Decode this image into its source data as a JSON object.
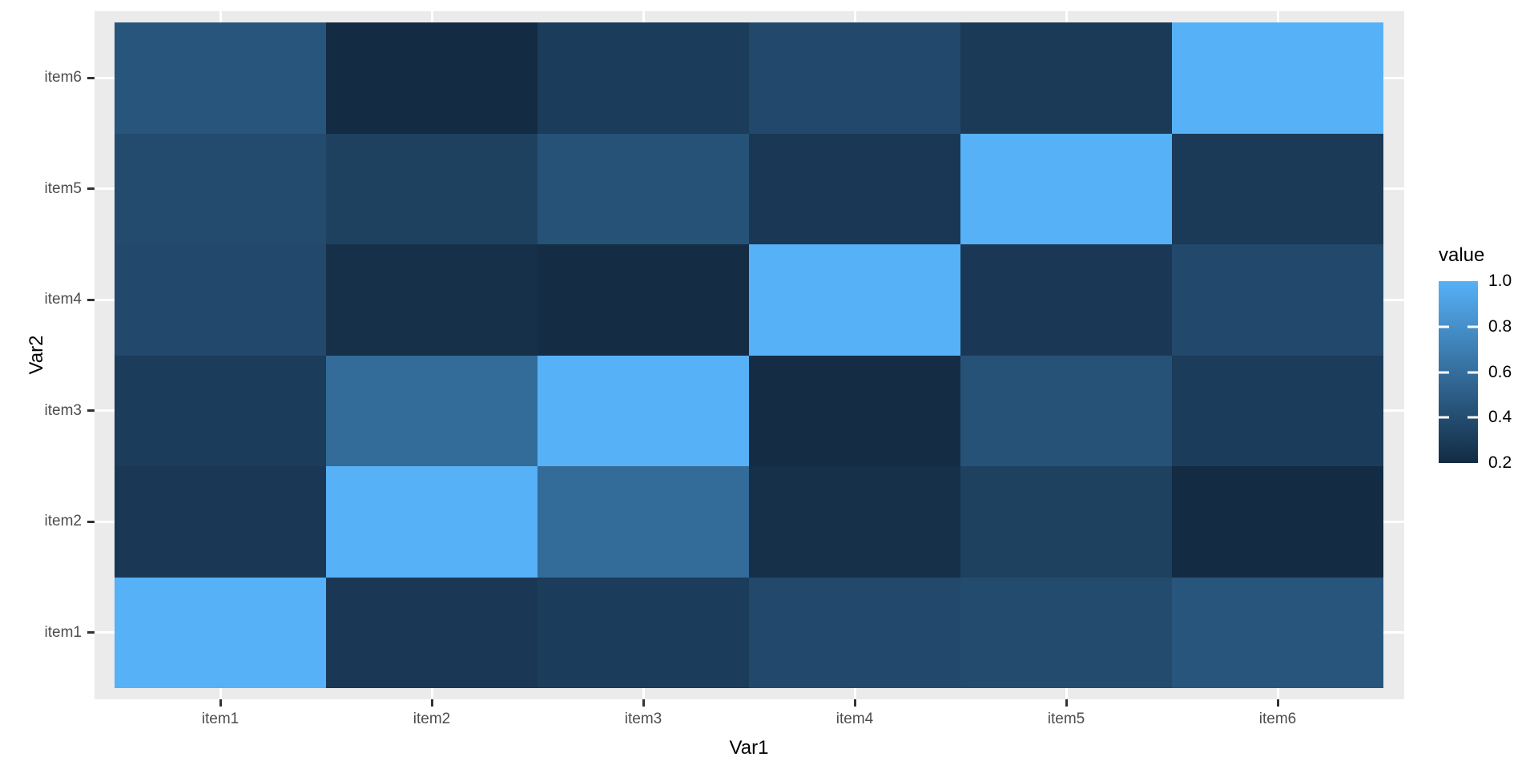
{
  "figure": {
    "background": "#ffffff",
    "panel_background": "#ebebeb",
    "grid_color": "#ffffff",
    "tick_mark_color": "#333333",
    "axis_text_color": "#4d4d4d",
    "title_text_color": "#000000"
  },
  "chart_data": {
    "type": "heatmap",
    "title": "",
    "xlabel": "Var1",
    "ylabel": "Var2",
    "x_categories": [
      "item1",
      "item2",
      "item3",
      "item4",
      "item5",
      "item6"
    ],
    "y_categories": [
      "item1",
      "item2",
      "item3",
      "item4",
      "item5",
      "item6"
    ],
    "y_display_top_to_bottom": [
      "item6",
      "item5",
      "item4",
      "item3",
      "item2",
      "item1"
    ],
    "note_values": "rows = Var2 (item1..item6), columns = Var1 (item1..item6)",
    "values": [
      [
        1.0,
        0.28,
        0.3,
        0.38,
        0.39,
        0.45
      ],
      [
        0.28,
        1.0,
        0.58,
        0.23,
        0.33,
        0.2
      ],
      [
        0.3,
        0.58,
        1.0,
        0.21,
        0.43,
        0.3
      ],
      [
        0.38,
        0.23,
        0.21,
        1.0,
        0.28,
        0.38
      ],
      [
        0.39,
        0.33,
        0.43,
        0.28,
        1.0,
        0.29
      ],
      [
        0.45,
        0.2,
        0.3,
        0.38,
        0.29,
        1.0
      ]
    ],
    "color_scale": {
      "low_color": "#132B43",
      "high_color": "#56B1F7",
      "domain": [
        0.2,
        1.0
      ]
    },
    "legend": {
      "title": "value",
      "position": "right",
      "tick_labels": [
        "1.0",
        "0.8",
        "0.6",
        "0.4",
        "0.2"
      ],
      "tick_values": [
        1.0,
        0.8,
        0.6,
        0.4,
        0.2
      ]
    },
    "grid": true,
    "axis_ranges": {
      "x": [
        0.4,
        6.6
      ],
      "y": [
        0.4,
        6.6
      ]
    }
  }
}
